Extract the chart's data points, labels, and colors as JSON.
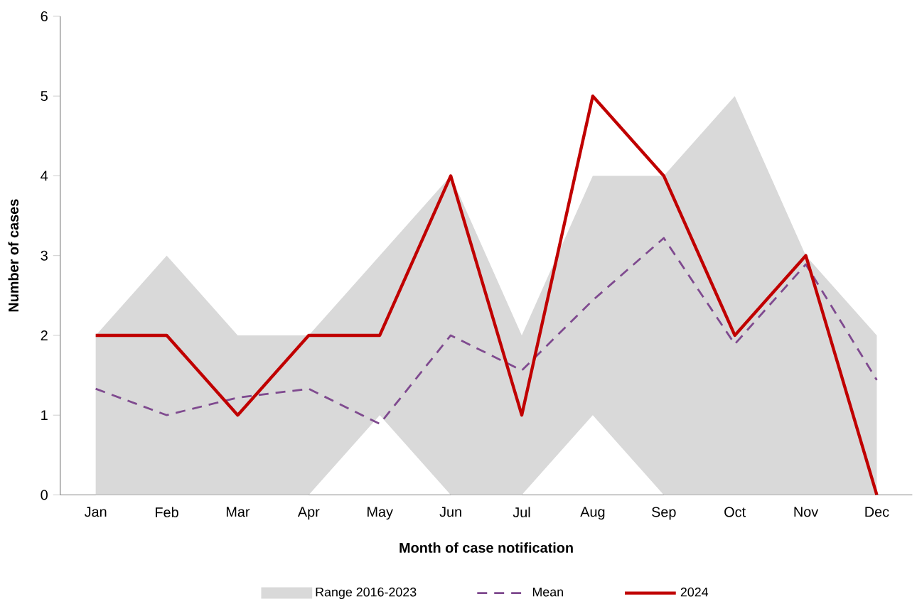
{
  "chart_data": {
    "type": "line",
    "xlabel": "Month of case notification",
    "ylabel": "Number of cases",
    "categories": [
      "Jan",
      "Feb",
      "Mar",
      "Apr",
      "May",
      "Jun",
      "Jul",
      "Aug",
      "Sep",
      "Oct",
      "Nov",
      "Dec"
    ],
    "ylim": [
      0,
      6
    ],
    "yticks": [
      0,
      1,
      2,
      3,
      4,
      5,
      6
    ],
    "grid": false,
    "legend": "bottom",
    "marker": "none",
    "series": [
      {
        "name": "Range 2016-2023",
        "type": "area",
        "color": "#d9d9d9",
        "values": [
          null,
          null,
          null,
          null,
          null,
          null,
          null,
          null,
          null,
          null,
          null,
          null
        ],
        "lower": [
          0,
          0,
          0,
          0,
          1,
          0,
          0,
          1,
          0,
          0,
          0,
          0
        ],
        "upper": [
          2,
          3,
          2,
          2,
          3,
          4,
          2,
          4,
          4,
          5,
          3,
          2
        ]
      },
      {
        "name": "Mean",
        "color": "#7f4a8f",
        "line_style": "dashed",
        "values": [
          1.33,
          1.0,
          1.22,
          1.33,
          0.89,
          2.0,
          1.56,
          2.44,
          3.22,
          1.89,
          2.89,
          1.44
        ]
      },
      {
        "name": "2024",
        "color": "#c00000",
        "line_style": "solid",
        "values": [
          2,
          2,
          1,
          2,
          2,
          4,
          1,
          5,
          4,
          2,
          3,
          0
        ]
      }
    ]
  }
}
